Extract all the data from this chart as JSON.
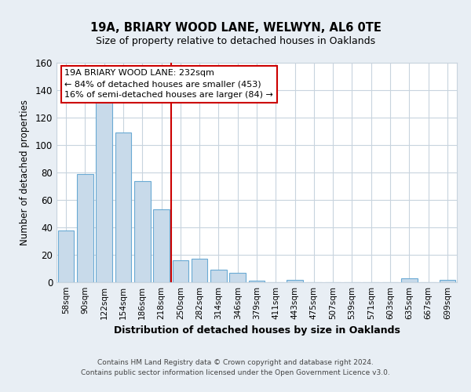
{
  "title": "19A, BRIARY WOOD LANE, WELWYN, AL6 0TE",
  "subtitle": "Size of property relative to detached houses in Oaklands",
  "xlabel": "Distribution of detached houses by size in Oaklands",
  "ylabel": "Number of detached properties",
  "categories": [
    "58sqm",
    "90sqm",
    "122sqm",
    "154sqm",
    "186sqm",
    "218sqm",
    "250sqm",
    "282sqm",
    "314sqm",
    "346sqm",
    "379sqm",
    "411sqm",
    "443sqm",
    "475sqm",
    "507sqm",
    "539sqm",
    "571sqm",
    "603sqm",
    "635sqm",
    "667sqm",
    "699sqm"
  ],
  "bar_heights": [
    38,
    79,
    133,
    109,
    74,
    53,
    16,
    17,
    9,
    7,
    1,
    0,
    2,
    0,
    0,
    0,
    0,
    0,
    3,
    0,
    2
  ],
  "bar_color": "#c8daea",
  "bar_edge_color": "#6aaad4",
  "ylim": [
    0,
    160
  ],
  "yticks": [
    0,
    20,
    40,
    60,
    80,
    100,
    120,
    140,
    160
  ],
  "vline_x_index": 6,
  "vline_color": "#cc0000",
  "annotation_title": "19A BRIARY WOOD LANE: 232sqm",
  "annotation_line1": "← 84% of detached houses are smaller (453)",
  "annotation_line2": "16% of semi-detached houses are larger (84) →",
  "annotation_box_edge": "#cc0000",
  "footer_line1": "Contains HM Land Registry data © Crown copyright and database right 2024.",
  "footer_line2": "Contains public sector information licensed under the Open Government Licence v3.0.",
  "background_color": "#e8eef4",
  "plot_bg_color": "#ffffff",
  "grid_color": "#c8d4de"
}
